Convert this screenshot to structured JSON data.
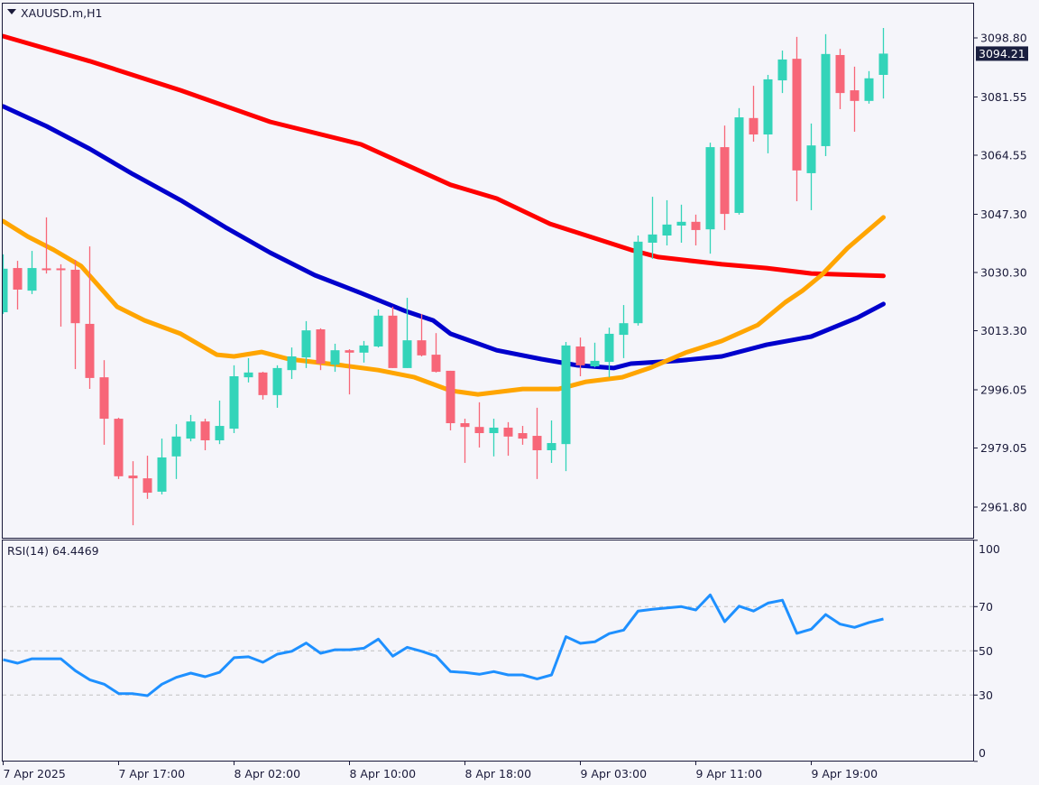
{
  "chart_data": [
    {
      "type": "candlestick",
      "title": "XAUUSD.m,H1",
      "current_price": "3094.21",
      "ylim": [
        2961.8,
        3098.8
      ],
      "y_ticks": [
        "3098.80",
        "3081.55",
        "3064.55",
        "3047.30",
        "3030.30",
        "3013.30",
        "2996.05",
        "2979.05",
        "2961.80"
      ],
      "x_ticks": [
        {
          "index": 0,
          "label": "7 Apr 2025"
        },
        {
          "index": 8,
          "label": "7 Apr 17:00"
        },
        {
          "index": 16,
          "label": "8 Apr 02:00"
        },
        {
          "index": 24,
          "label": "8 Apr 10:00"
        },
        {
          "index": 32,
          "label": "8 Apr 18:00"
        },
        {
          "index": 40,
          "label": "9 Apr 03:00"
        },
        {
          "index": 48,
          "label": "9 Apr 11:00"
        },
        {
          "index": 56,
          "label": "9 Apr 19:00"
        }
      ],
      "colors": {
        "bull": "#33d4b9",
        "bear": "#f76678",
        "background": "#f5f5fa",
        "axis": "#1a1a3a"
      },
      "ohlc": [
        [
          3018.7,
          3035.6,
          3018.2,
          3031.4
        ],
        [
          3031.6,
          3033.7,
          3019.5,
          3025.3
        ],
        [
          3025.0,
          3036.6,
          3024.0,
          3031.6
        ],
        [
          3031.5,
          3046.4,
          3030.0,
          3031.2
        ],
        [
          3031.5,
          3032.7,
          3014.5,
          3031.2
        ],
        [
          3031.1,
          3034.0,
          3002.1,
          3015.5
        ],
        [
          3015.3,
          3037.9,
          2996.3,
          2999.5
        ],
        [
          2999.7,
          3004.7,
          2980.0,
          2987.6
        ],
        [
          2987.6,
          2987.9,
          2970.0,
          2970.8
        ],
        [
          2971.0,
          2975.2,
          2956.5,
          2970.2
        ],
        [
          2970.2,
          2976.8,
          2964.2,
          2966.0
        ],
        [
          2966.3,
          2981.8,
          2965.5,
          2976.3
        ],
        [
          2976.6,
          2986.0,
          2970.0,
          2982.4
        ],
        [
          2981.8,
          2988.7,
          2981.0,
          2986.8
        ],
        [
          2986.8,
          2987.6,
          2978.4,
          2981.3
        ],
        [
          2981.3,
          2992.9,
          2980.2,
          2985.5
        ],
        [
          2984.7,
          3003.2,
          2983.4,
          3000.0
        ],
        [
          2999.7,
          3005.3,
          2998.2,
          3001.1
        ],
        [
          3001.1,
          3001.3,
          2993.2,
          2994.5
        ],
        [
          2994.5,
          3003.2,
          2990.8,
          3002.4
        ],
        [
          3001.8,
          3008.4,
          2999.2,
          3005.8
        ],
        [
          3005.5,
          3016.1,
          3002.4,
          3013.4
        ],
        [
          3013.7,
          3014.0,
          3001.8,
          3003.7
        ],
        [
          3003.4,
          3009.5,
          3001.3,
          3007.6
        ],
        [
          3007.6,
          3007.9,
          2994.7,
          3006.9
        ],
        [
          3006.9,
          3010.3,
          3004.0,
          3009.0
        ],
        [
          3008.7,
          3019.5,
          3008.4,
          3017.7
        ],
        [
          3017.7,
          3020.3,
          3002.4,
          3002.4
        ],
        [
          3002.4,
          3022.9,
          3002.4,
          3010.5
        ],
        [
          3010.5,
          3018.2,
          3005.8,
          3006.1
        ],
        [
          3006.3,
          3012.6,
          3001.1,
          3001.3
        ],
        [
          3001.6,
          3001.6,
          2984.2,
          2986.3
        ],
        [
          2986.3,
          2987.6,
          2974.7,
          2985.2
        ],
        [
          2985.2,
          2992.4,
          2979.2,
          2983.4
        ],
        [
          2983.4,
          2987.6,
          2976.6,
          2985.0
        ],
        [
          2985.0,
          2986.6,
          2976.8,
          2982.4
        ],
        [
          2983.4,
          2985.5,
          2980.0,
          2981.8
        ],
        [
          2982.6,
          2990.8,
          2970.0,
          2978.4
        ],
        [
          2978.4,
          2987.1,
          2974.7,
          2980.5
        ],
        [
          2980.2,
          3010.0,
          2972.3,
          3009.0
        ],
        [
          3008.7,
          3011.3,
          3000.0,
          3003.2
        ],
        [
          3002.9,
          3009.8,
          3002.6,
          3004.5
        ],
        [
          3004.2,
          3014.2,
          2999.7,
          3012.4
        ],
        [
          3012.1,
          3020.8,
          3005.3,
          3015.5
        ],
        [
          3015.5,
          3041.1,
          3014.8,
          3039.3
        ],
        [
          3039.0,
          3052.4,
          3034.3,
          3041.4
        ],
        [
          3041.1,
          3051.4,
          3038.2,
          3044.3
        ],
        [
          3044.0,
          3050.1,
          3039.0,
          3045.1
        ],
        [
          3045.1,
          3047.2,
          3038.2,
          3042.7
        ],
        [
          3042.9,
          3068.2,
          3035.8,
          3066.9
        ],
        [
          3066.9,
          3073.2,
          3042.7,
          3047.4
        ],
        [
          3047.7,
          3078.3,
          3047.2,
          3075.6
        ],
        [
          3075.4,
          3084.8,
          3068.5,
          3070.6
        ],
        [
          3070.6,
          3088.0,
          3065.1,
          3086.7
        ],
        [
          3086.4,
          3095.1,
          3082.7,
          3092.5
        ],
        [
          3092.7,
          3099.1,
          3051.1,
          3060.1
        ],
        [
          3059.3,
          3073.8,
          3048.5,
          3067.4
        ],
        [
          3067.2,
          3099.9,
          3064.3,
          3094.1
        ],
        [
          3093.8,
          3095.6,
          3078.0,
          3082.7
        ],
        [
          3083.5,
          3090.4,
          3071.4,
          3080.4
        ],
        [
          3080.4,
          3089.1,
          3079.6,
          3087.0
        ],
        [
          3088.0,
          3101.7,
          3081.1,
          3094.21
        ]
      ],
      "moving_averages": [
        {
          "name": "ma-slow-red",
          "color": "#ff0000",
          "points": [
            [
              0,
              3099.3
            ],
            [
              6,
              3092.0
            ],
            [
              12.3,
              3083.5
            ],
            [
              18.5,
              3074.3
            ],
            [
              24.8,
              3067.7
            ],
            [
              31,
              3055.9
            ],
            [
              34.2,
              3051.9
            ],
            [
              37.9,
              3044.5
            ],
            [
              43.5,
              3036.9
            ],
            [
              45.4,
              3034.8
            ],
            [
              49.8,
              3032.7
            ],
            [
              52.9,
              3031.6
            ],
            [
              56,
              3030.0
            ],
            [
              61,
              3029.3
            ]
          ]
        },
        {
          "name": "ma-mid-blue",
          "color": "#0000cc",
          "points": [
            [
              0,
              3078.8
            ],
            [
              3,
              3073.0
            ],
            [
              6,
              3066.4
            ],
            [
              9,
              3059.0
            ],
            [
              12.3,
              3051.4
            ],
            [
              15.4,
              3043.5
            ],
            [
              18.5,
              3036.1
            ],
            [
              21.6,
              3029.5
            ],
            [
              24.8,
              3024.3
            ],
            [
              27.9,
              3019.0
            ],
            [
              29.8,
              3016.3
            ],
            [
              31,
              3012.4
            ],
            [
              34.2,
              3007.6
            ],
            [
              37.3,
              3005.0
            ],
            [
              39.8,
              3003.2
            ],
            [
              42.3,
              3002.4
            ],
            [
              43.5,
              3003.7
            ],
            [
              46.7,
              3004.5
            ],
            [
              49.8,
              3005.8
            ],
            [
              52.9,
              3009.2
            ],
            [
              56,
              3011.6
            ],
            [
              59.2,
              3017.1
            ],
            [
              61,
              3021.1
            ]
          ]
        },
        {
          "name": "ma-fast-orange",
          "color": "#ffa500",
          "points": [
            [
              0,
              3045.3
            ],
            [
              1.7,
              3040.8
            ],
            [
              3.5,
              3036.9
            ],
            [
              5.4,
              3032.2
            ],
            [
              7.9,
              3020.3
            ],
            [
              9.8,
              3016.3
            ],
            [
              12.3,
              3012.4
            ],
            [
              14.8,
              3006.3
            ],
            [
              16,
              3005.8
            ],
            [
              17.9,
              3007.1
            ],
            [
              19.8,
              3005.0
            ],
            [
              23.5,
              3003.2
            ],
            [
              26,
              3001.8
            ],
            [
              28.5,
              2999.7
            ],
            [
              31,
              2995.8
            ],
            [
              32.9,
              2994.7
            ],
            [
              36,
              2996.3
            ],
            [
              38.5,
              2996.3
            ],
            [
              40.4,
              2998.4
            ],
            [
              42.9,
              2999.7
            ],
            [
              44.8,
              3002.4
            ],
            [
              47.3,
              3006.9
            ],
            [
              49.8,
              3010.3
            ],
            [
              52.3,
              3015.0
            ],
            [
              54.2,
              3021.6
            ],
            [
              55.4,
              3025.0
            ],
            [
              56.7,
              3029.5
            ],
            [
              58.5,
              3037.4
            ],
            [
              61,
              3046.4
            ]
          ]
        }
      ]
    },
    {
      "type": "line",
      "title": "RSI(14) 64.4469",
      "ylim": [
        0,
        100
      ],
      "y_ticks": [
        "100",
        "70",
        "50",
        "30",
        "0"
      ],
      "levels": [
        70,
        50,
        30
      ],
      "color": "#1e90ff",
      "values": [
        46.0,
        44.4,
        46.4,
        46.4,
        46.4,
        41.0,
        36.9,
        34.9,
        30.7,
        30.6,
        29.7,
        34.9,
        38.0,
        39.9,
        38.3,
        40.3,
        46.9,
        47.3,
        44.8,
        48.5,
        49.8,
        53.5,
        48.9,
        50.5,
        50.5,
        51.2,
        55.3,
        47.6,
        51.6,
        49.8,
        47.6,
        40.6,
        40.2,
        39.4,
        40.6,
        39.1,
        39.1,
        37.3,
        39.1,
        56.4,
        53.4,
        54.1,
        57.8,
        59.4,
        68.0,
        68.8,
        69.4,
        70.0,
        68.5,
        75.3,
        63.2,
        70.2,
        68.0,
        71.6,
        72.9,
        57.9,
        59.8,
        66.4,
        62.1,
        60.6,
        62.8,
        64.4
      ]
    }
  ]
}
